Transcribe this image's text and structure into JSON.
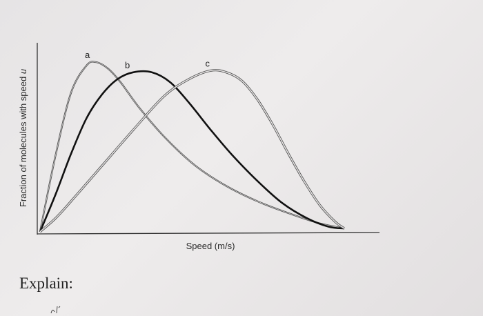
{
  "chart_data": {
    "type": "line",
    "xlabel": "Speed (m/s)",
    "ylabel": "Fraction of molecules with speed u",
    "ylabel_prefix": "Fraction of molecules with speed ",
    "ylabel_var": "u",
    "xlim": [
      0,
      10
    ],
    "ylim": [
      0,
      1
    ],
    "grid": false,
    "legend": "none",
    "series": [
      {
        "name": "a",
        "style": "thin-double",
        "color": "#555555",
        "x": [
          0,
          0.5,
          1.0,
          1.5,
          1.8,
          2.2,
          2.6,
          3.2,
          4.0,
          5.0,
          6.0,
          7.0,
          8.0,
          9.0,
          9.8
        ],
        "y": [
          0.0,
          0.45,
          0.82,
          0.98,
          1.0,
          0.96,
          0.88,
          0.73,
          0.56,
          0.39,
          0.27,
          0.18,
          0.11,
          0.05,
          0.02
        ]
      },
      {
        "name": "b",
        "style": "thick",
        "color": "#111111",
        "x": [
          0,
          0.5,
          1.0,
          1.5,
          2.0,
          2.5,
          3.0,
          3.6,
          4.2,
          4.8,
          5.5,
          6.2,
          7.0,
          7.8,
          8.6,
          9.3,
          9.8
        ],
        "y": [
          0.0,
          0.22,
          0.46,
          0.67,
          0.81,
          0.9,
          0.94,
          0.94,
          0.88,
          0.76,
          0.6,
          0.45,
          0.3,
          0.17,
          0.08,
          0.03,
          0.02
        ]
      },
      {
        "name": "c",
        "style": "double",
        "color": "#555555",
        "x": [
          0,
          0.5,
          1.0,
          2.0,
          3.0,
          4.0,
          4.8,
          5.5,
          6.0,
          6.5,
          7.0,
          7.5,
          8.0,
          8.5,
          9.0,
          9.5,
          9.8
        ],
        "y": [
          0.0,
          0.08,
          0.18,
          0.39,
          0.6,
          0.8,
          0.9,
          0.95,
          0.94,
          0.89,
          0.78,
          0.63,
          0.46,
          0.3,
          0.16,
          0.06,
          0.02
        ]
      }
    ],
    "annotations": [
      "a",
      "b",
      "c"
    ]
  },
  "footer": {
    "explain": "Explain:"
  }
}
